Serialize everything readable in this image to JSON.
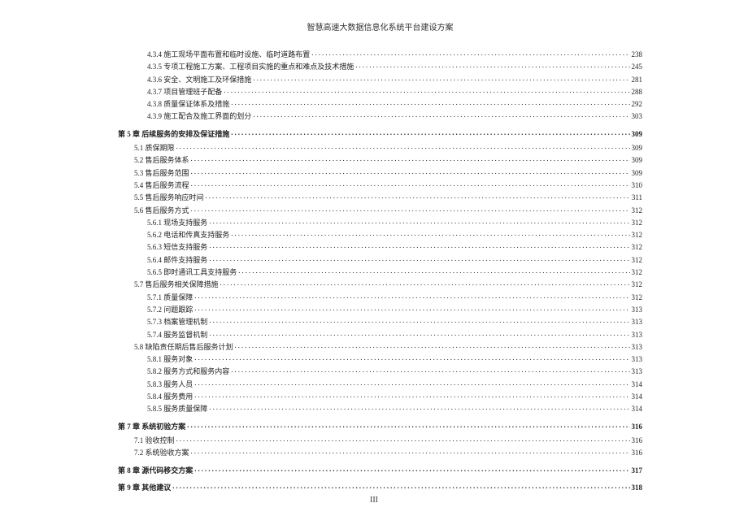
{
  "header": {
    "title": "智慧高速大数据信息化系统平台建设方案"
  },
  "toc": [
    {
      "level": 3,
      "label": "4.3.4  施工现场平面布置和临时设施、临时道路布置",
      "page": "238"
    },
    {
      "level": 3,
      "label": "4.3.5  专项工程施工方案、工程项目实施的重点和难点及技术措施",
      "page": "245"
    },
    {
      "level": 3,
      "label": "4.3.6  安全、文明施工及环保措施",
      "page": "281"
    },
    {
      "level": 3,
      "label": "4.3.7  项目管理班子配备",
      "page": "288"
    },
    {
      "level": 3,
      "label": "4.3.8  质量保证体系及措施",
      "page": "292"
    },
    {
      "level": 3,
      "label": "4.3.9  施工配合及施工界面的划分",
      "page": "303"
    },
    {
      "level": 1,
      "label": "第 5 章  后续服务的安排及保证措施",
      "page": "309"
    },
    {
      "level": 2,
      "label": "5.1  质保期限",
      "page": "309"
    },
    {
      "level": 2,
      "label": "5.2  售后服务体系",
      "page": "309"
    },
    {
      "level": 2,
      "label": "5.3  售后服务范围",
      "page": "309"
    },
    {
      "level": 2,
      "label": "5.4  售后服务流程",
      "page": "310"
    },
    {
      "level": 2,
      "label": "5.5  售后服务响应时间",
      "page": "311"
    },
    {
      "level": 2,
      "label": "5.6  售后服务方式",
      "page": "312"
    },
    {
      "level": 3,
      "label": "5.6.1  现场支持服务",
      "page": "312"
    },
    {
      "level": 3,
      "label": "5.6.2  电话和传真支持服务",
      "page": "312"
    },
    {
      "level": 3,
      "label": "5.6.3  短信支持服务",
      "page": "312"
    },
    {
      "level": 3,
      "label": "5.6.4  邮件支持服务",
      "page": "312"
    },
    {
      "level": 3,
      "label": "5.6.5  即时通讯工具支持服务",
      "page": "312"
    },
    {
      "level": 2,
      "label": "5.7  售后服务相关保障措施",
      "page": "312"
    },
    {
      "level": 3,
      "label": "5.7.1  质量保障",
      "page": "312"
    },
    {
      "level": 3,
      "label": "5.7.2  问题跟踪",
      "page": "313"
    },
    {
      "level": 3,
      "label": "5.7.3  档案管理机制",
      "page": "313"
    },
    {
      "level": 3,
      "label": "5.7.4  服务监督机制",
      "page": "313"
    },
    {
      "level": 2,
      "label": "5.8  缺陷责任期后售后服务计划",
      "page": "313"
    },
    {
      "level": 3,
      "label": "5.8.1  服务对象",
      "page": "313"
    },
    {
      "level": 3,
      "label": "5.8.2  服务方式和服务内容",
      "page": "313"
    },
    {
      "level": 3,
      "label": "5.8.3  服务人员",
      "page": "314"
    },
    {
      "level": 3,
      "label": "5.8.4  服务费用",
      "page": "314"
    },
    {
      "level": 3,
      "label": "5.8.5  服务质量保障",
      "page": "314"
    },
    {
      "level": 1,
      "label": "第 7 章  系统初验方案",
      "page": "316"
    },
    {
      "level": 2,
      "label": "7.1  验收控制",
      "page": "316"
    },
    {
      "level": 2,
      "label": "7.2  系统验收方案",
      "page": "316"
    },
    {
      "level": 1,
      "label": "第 8 章  源代码移交方案",
      "page": "317"
    },
    {
      "level": 1,
      "label": "第 9 章  其他建议",
      "page": "318"
    }
  ],
  "footer": {
    "pageNum": "III"
  }
}
